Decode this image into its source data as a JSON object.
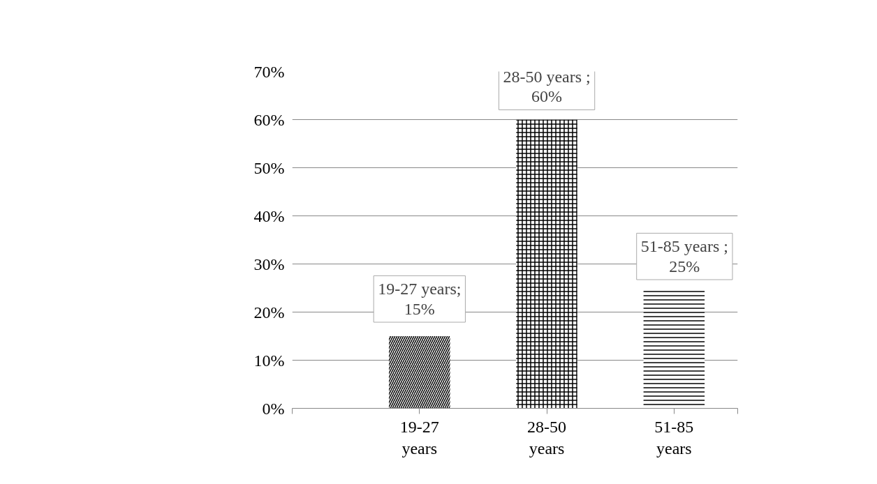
{
  "chart_data": {
    "type": "bar",
    "categories": [
      "19-27 years",
      "28-50 years",
      "51-85 years"
    ],
    "values": [
      15,
      60,
      25
    ],
    "colors": [
      "#000000",
      "#000000",
      "#000000"
    ],
    "value_labels": [
      "19-27 years; 15%",
      "28-50 years ; 60%",
      "51-85 years ; 25%"
    ],
    "ylim": [
      0,
      70
    ],
    "yticks": [
      {
        "value": 0,
        "label": "0%"
      },
      {
        "value": 10,
        "label": "10%"
      },
      {
        "value": 20,
        "label": "20%"
      },
      {
        "value": 30,
        "label": "30%"
      },
      {
        "value": 40,
        "label": "40%"
      },
      {
        "value": 50,
        "label": "50%"
      },
      {
        "value": 60,
        "label": "60%"
      },
      {
        "value": 70,
        "label": "70%"
      }
    ],
    "grid": "y"
  }
}
